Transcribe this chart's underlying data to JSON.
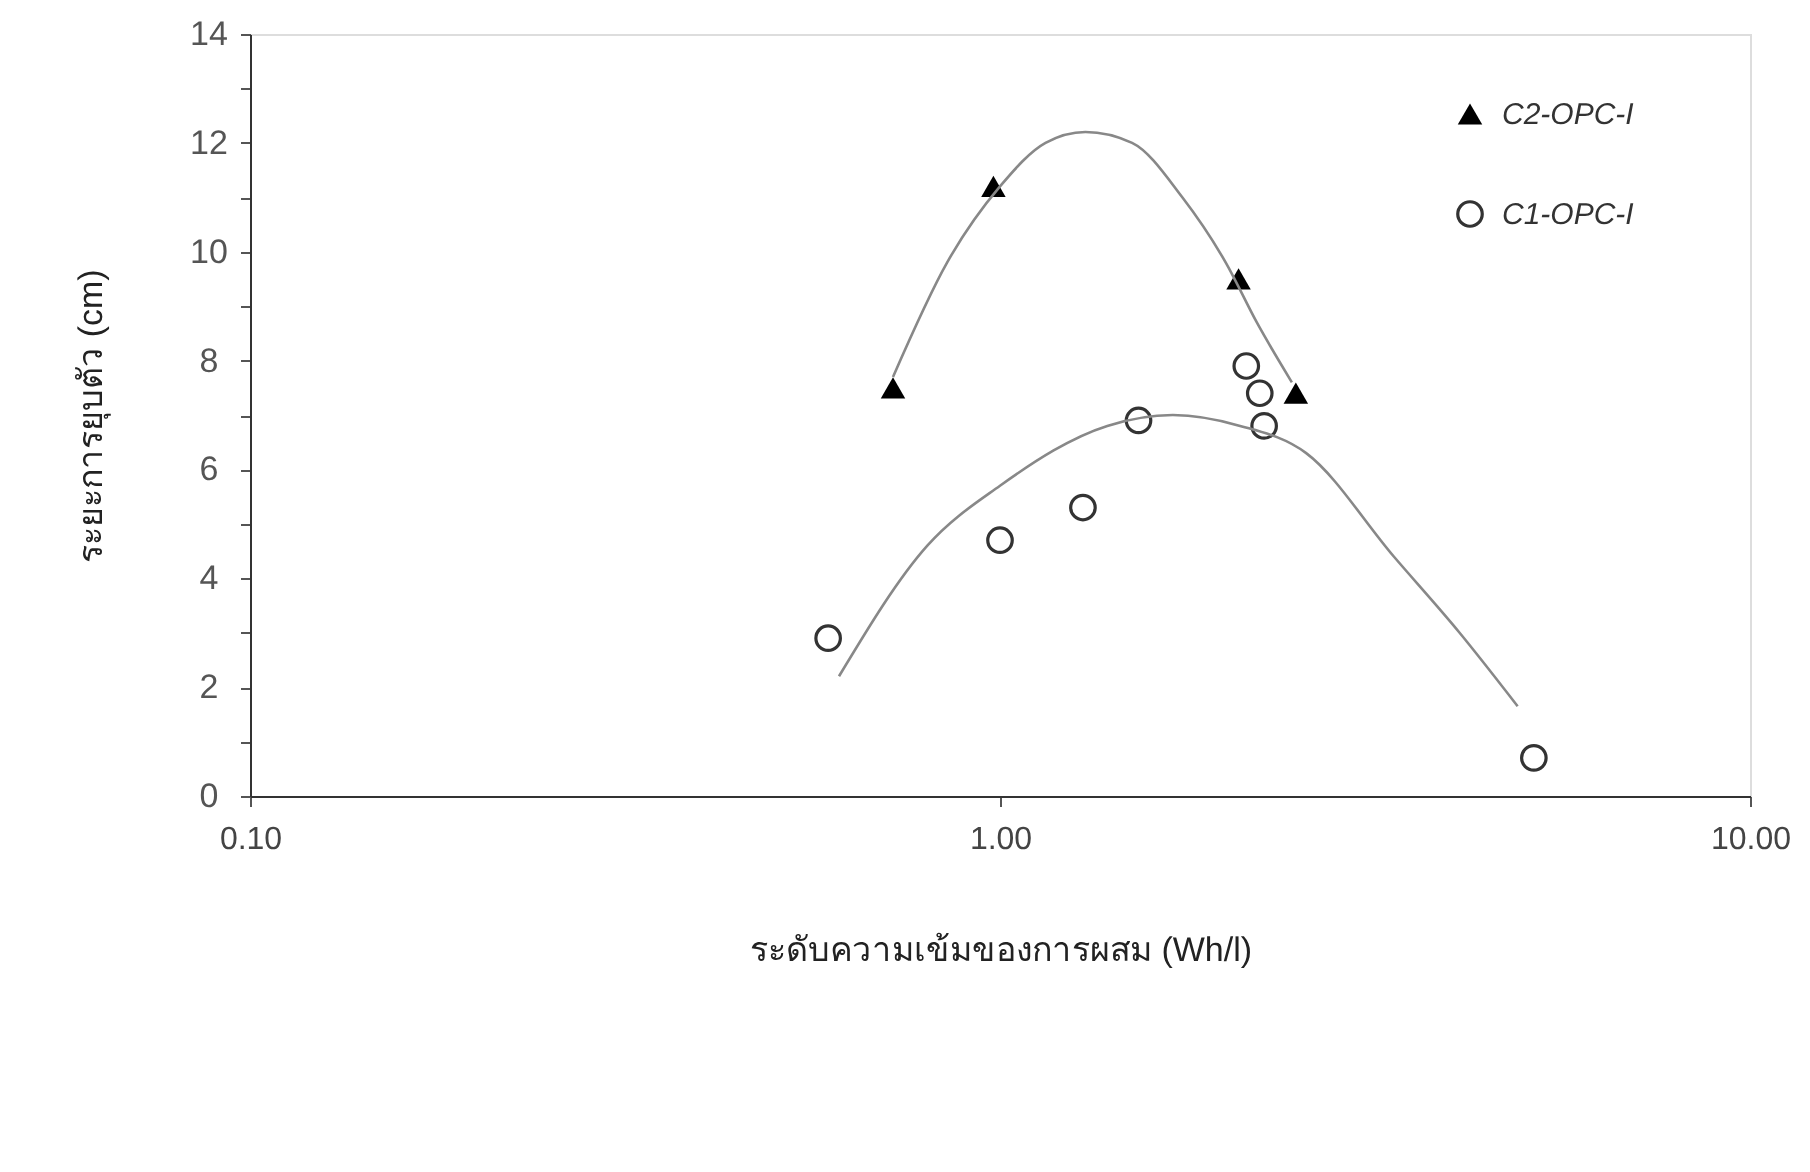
{
  "chart_data": {
    "type": "scatter",
    "xlabel": "ระดับความเข้มของการผสม (Wh/l)",
    "ylabel": "ระยะการยุบตัว (cm)",
    "log": "x",
    "xlim": [
      0.1,
      10
    ],
    "ylim": [
      0,
      14
    ],
    "xticks": [
      {
        "value": 0.1,
        "label": "0.10"
      },
      {
        "value": 1,
        "label": "1.00"
      },
      {
        "value": 10,
        "label": "10.00"
      }
    ],
    "yticks": [
      0,
      {
        "value": 1,
        "label": null
      },
      2,
      {
        "value": 3,
        "label": null
      },
      4,
      {
        "value": 5,
        "label": null
      },
      6,
      {
        "value": 7,
        "label": null
      },
      8,
      {
        "value": 9,
        "label": null
      },
      10,
      {
        "value": 11,
        "label": null
      },
      12,
      {
        "value": 13,
        "label": null
      },
      14
    ],
    "grid": false,
    "legend": "top right",
    "series": [
      {
        "name": "C2-OPC-I",
        "marker": "triangle",
        "color": "#000000",
        "x": [
          0.72,
          0.98,
          2.08,
          2.48
        ],
        "values": [
          7.5,
          11.2,
          9.5,
          7.4
        ]
      },
      {
        "name": "C1-OPC-I",
        "marker": "circle",
        "color": "#333333",
        "x": [
          0.59,
          1.0,
          1.29,
          1.53,
          2.13,
          2.22,
          2.25,
          5.15
        ],
        "values": [
          2.9,
          4.7,
          5.3,
          6.9,
          7.9,
          7.4,
          6.8,
          0.7
        ]
      },
      {
        "type": "line",
        "color": "#888888",
        "x": [
          0.72,
          0.85,
          1.0,
          1.15,
          1.3,
          1.5,
          1.75,
          2.0,
          2.2,
          2.45
        ],
        "values": [
          7.7,
          9.8,
          11.2,
          12.0,
          12.2,
          12.0,
          11.0,
          9.8,
          8.7,
          7.6
        ]
      },
      {
        "type": "line",
        "color": "#888888",
        "x": [
          0.61,
          0.8,
          1.0,
          1.39,
          1.7,
          2.09,
          2.56,
          3.35,
          4.1,
          4.9
        ],
        "values": [
          2.2,
          4.6,
          5.7,
          6.8,
          7.0,
          6.8,
          6.3,
          4.4,
          3.0,
          1.65
        ]
      }
    ]
  }
}
